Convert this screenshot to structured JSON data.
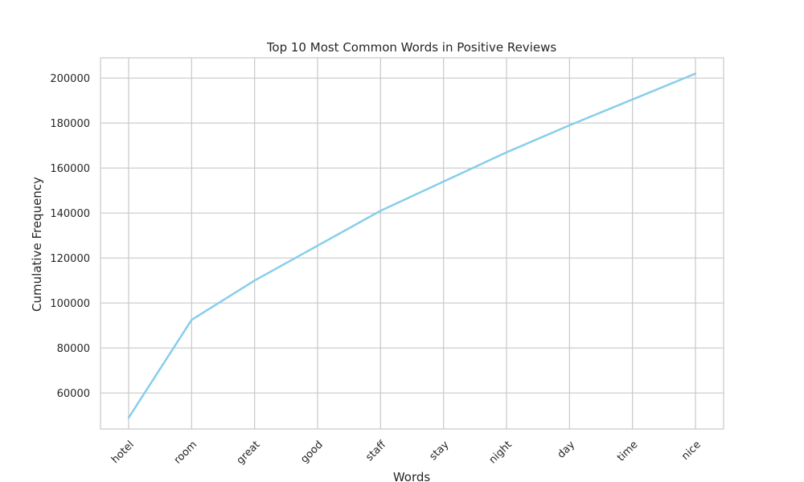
{
  "chart_data": {
    "type": "line",
    "title": "Top 10 Most Common Words in Positive Reviews",
    "xlabel": "Words",
    "ylabel": "Cumulative Frequency",
    "categories": [
      "hotel",
      "room",
      "great",
      "good",
      "staff",
      "stay",
      "night",
      "day",
      "time",
      "nice"
    ],
    "series": [
      {
        "values": [
          49000,
          92500,
          110000,
          125500,
          141000,
          154000,
          167000,
          179000,
          190500,
          202000
        ]
      }
    ],
    "yticks": [
      60000,
      80000,
      100000,
      120000,
      140000,
      160000,
      180000,
      200000
    ],
    "ytick_labels": [
      "60000",
      "80000",
      "100000",
      "120000",
      "140000",
      "160000",
      "180000",
      "200000"
    ],
    "ylim": [
      44000,
      209000
    ],
    "grid": true,
    "line_color": "#87ceeb",
    "grid_color": "#c8c8c8",
    "spine_color": "#c8c8c8"
  }
}
